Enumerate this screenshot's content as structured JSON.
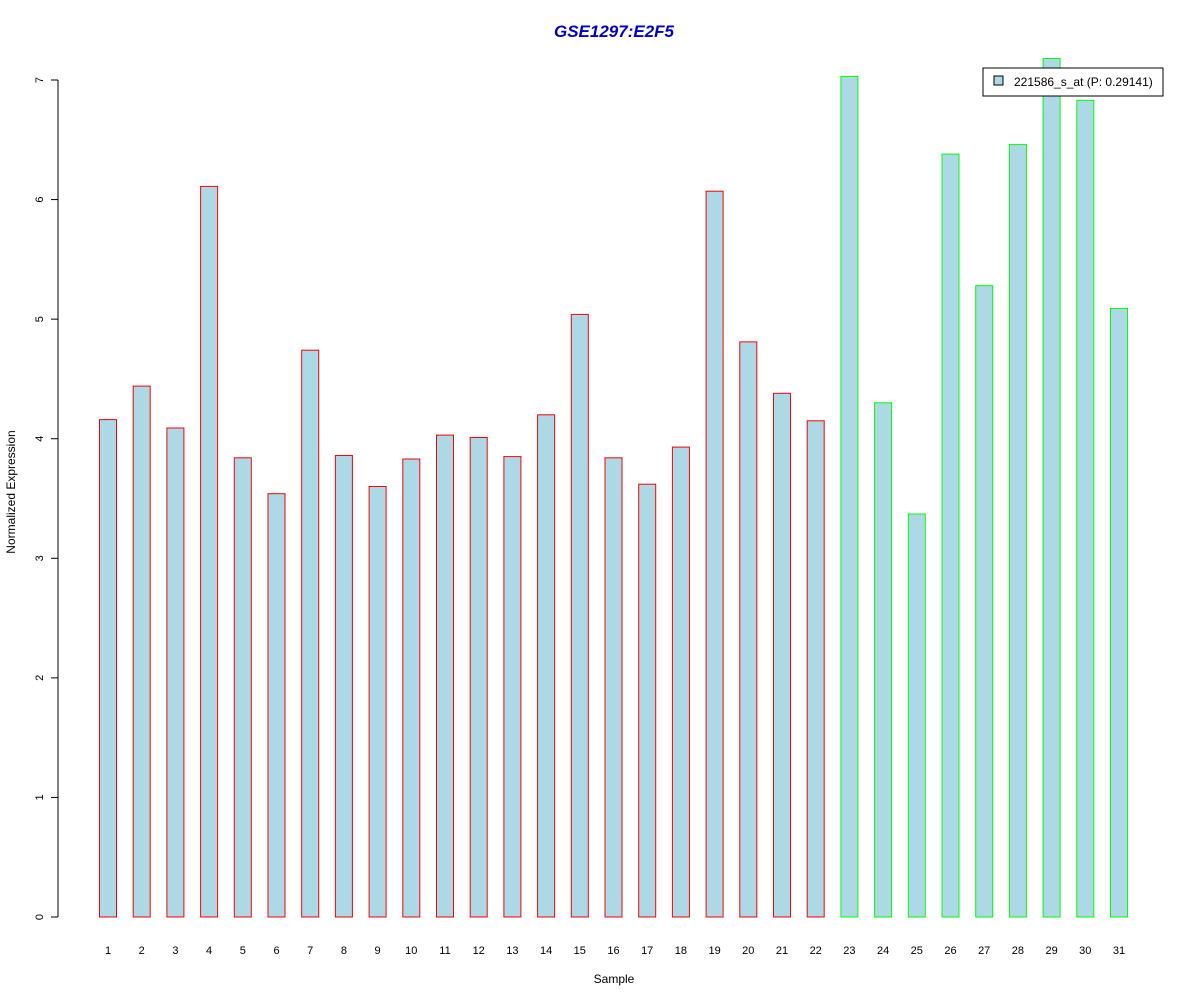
{
  "chart_data": {
    "type": "bar",
    "title": "GSE1297:E2F5",
    "xlabel": "Sample",
    "ylabel": "Normalized Expression",
    "ylim": [
      0,
      7
    ],
    "yticks": [
      "0",
      "1",
      "2",
      "3",
      "4",
      "5",
      "6",
      "7"
    ],
    "categories": [
      "1",
      "2",
      "3",
      "4",
      "5",
      "6",
      "7",
      "8",
      "9",
      "10",
      "11",
      "12",
      "13",
      "14",
      "15",
      "16",
      "17",
      "18",
      "19",
      "20",
      "21",
      "22",
      "23",
      "24",
      "25",
      "26",
      "27",
      "28",
      "29",
      "30",
      "31"
    ],
    "series": [
      {
        "name": "221586_s_at (P: 0.29141)",
        "values": [
          4.16,
          4.44,
          4.09,
          6.11,
          3.84,
          3.54,
          4.74,
          3.86,
          3.6,
          3.83,
          4.03,
          4.01,
          3.85,
          4.2,
          5.04,
          3.84,
          3.62,
          3.93,
          6.07,
          4.81,
          4.38,
          4.15,
          7.03,
          4.3,
          3.37,
          6.38,
          5.28,
          6.46,
          7.18,
          6.83,
          5.09
        ],
        "groups": [
          "a",
          "a",
          "a",
          "a",
          "a",
          "a",
          "a",
          "a",
          "a",
          "a",
          "a",
          "a",
          "a",
          "a",
          "a",
          "a",
          "a",
          "a",
          "a",
          "a",
          "a",
          "a",
          "b",
          "b",
          "b",
          "b",
          "b",
          "b",
          "b",
          "b",
          "b"
        ]
      }
    ],
    "legend_position": "top-right",
    "grid": false,
    "colors": {
      "bar_fill": "#add8e6",
      "group_a_border": "#ff0000",
      "group_b_border": "#00ff00",
      "title": "#0000cd",
      "axis": "#000000"
    }
  }
}
